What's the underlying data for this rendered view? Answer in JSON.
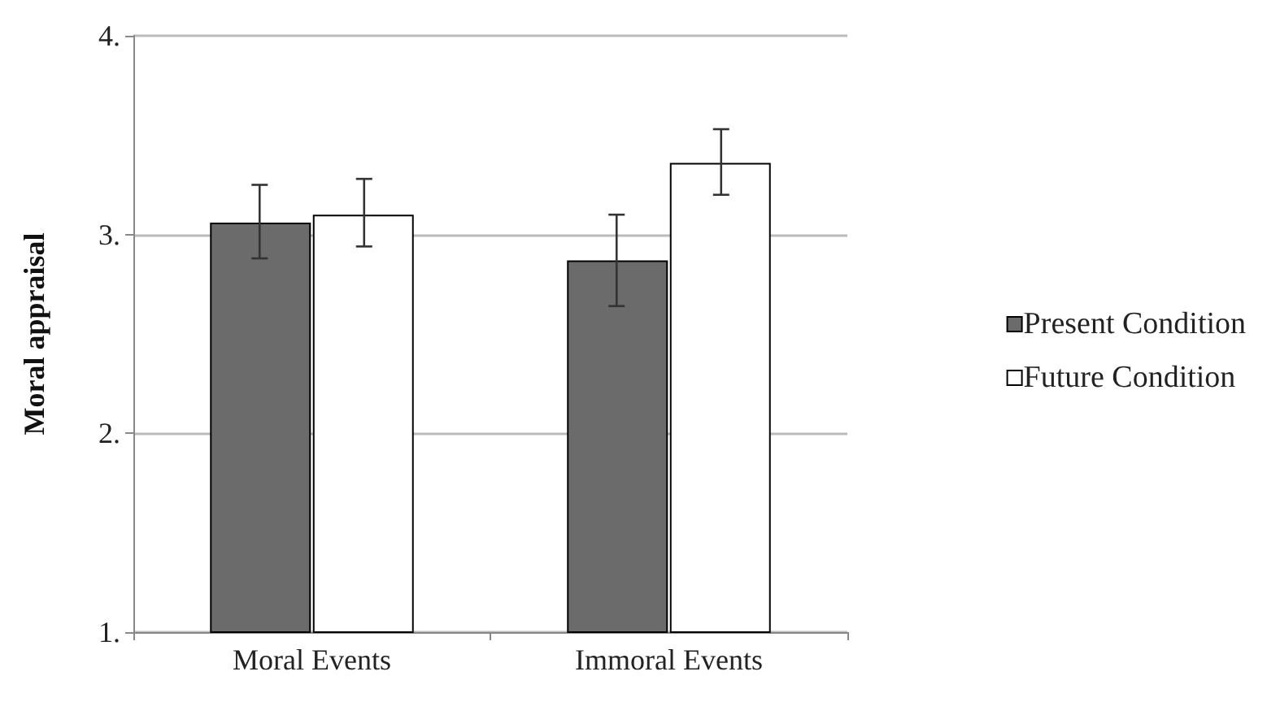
{
  "chart_data": {
    "type": "bar",
    "ylabel": "Moral appraisal",
    "categories": [
      "Moral Events",
      "Immoral Events"
    ],
    "series": [
      {
        "name": "Present Condition",
        "color": "#6b6b6b",
        "values": [
          3.06,
          2.87
        ],
        "errors": [
          [
            2.88,
            3.25
          ],
          [
            2.64,
            3.1
          ]
        ]
      },
      {
        "name": "Future Condition",
        "color": "#ffffff",
        "values": [
          3.1,
          3.36
        ],
        "errors": [
          [
            2.94,
            3.28
          ],
          [
            3.2,
            3.53
          ]
        ]
      }
    ],
    "ylim": [
      1,
      4
    ],
    "yticks": [
      {
        "value": 1,
        "label": "1."
      },
      {
        "value": 2,
        "label": "2."
      },
      {
        "value": 3,
        "label": "3."
      },
      {
        "value": 4,
        "label": "4."
      }
    ],
    "grid": "y",
    "legend": "right"
  }
}
